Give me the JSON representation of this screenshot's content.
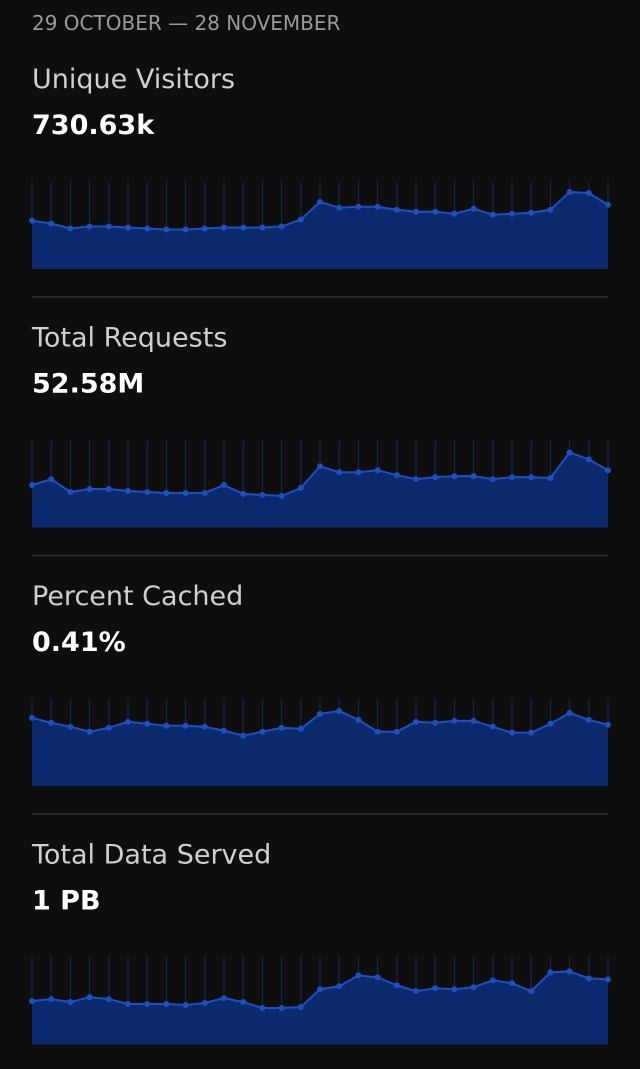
{
  "header": {
    "date_range": "29 OCTOBER — 28 NOVEMBER"
  },
  "chart_data": [
    {
      "type": "area",
      "title": "Unique Visitors",
      "total": "730.63k",
      "color": "#0b2a6e",
      "line_color": "#1f4fbf",
      "ylim": [
        0,
        80
      ],
      "values": [
        49,
        46,
        41,
        43,
        43,
        42,
        41,
        40,
        40,
        41,
        42,
        42,
        42,
        43,
        50,
        68,
        62,
        63,
        63,
        60,
        58,
        58,
        56,
        61,
        55,
        56,
        57,
        60,
        78,
        77,
        65
      ]
    },
    {
      "type": "area",
      "title": "Total Requests",
      "total": "52.58M",
      "color": "#0b2a6e",
      "line_color": "#1f4fbf",
      "ylim": [
        0,
        80
      ],
      "values": [
        43,
        49,
        36,
        39,
        39,
        37,
        36,
        35,
        35,
        35,
        43,
        34,
        33,
        32,
        40,
        62,
        56,
        56,
        58,
        53,
        49,
        51,
        52,
        52,
        49,
        51,
        51,
        50,
        76,
        69,
        58
      ]
    },
    {
      "type": "area",
      "title": "Percent Cached",
      "total": "0.41%",
      "color": "#0b2a6e",
      "line_color": "#1f4fbf",
      "ylim": [
        0,
        80
      ],
      "values": [
        69,
        64,
        60,
        55,
        59,
        65,
        63,
        61,
        61,
        60,
        56,
        51,
        55,
        59,
        58,
        73,
        76,
        67,
        55,
        55,
        65,
        64,
        66,
        66,
        60,
        54,
        54,
        63,
        74,
        67,
        62
      ]
    },
    {
      "type": "area",
      "title": "Total Data Served",
      "total": "1 PB",
      "color": "#0b2a6e",
      "line_color": "#1f4fbf",
      "ylim": [
        0,
        80
      ],
      "values": [
        44,
        46,
        43,
        48,
        46,
        41,
        41,
        41,
        40,
        42,
        47,
        43,
        37,
        37,
        38,
        56,
        59,
        70,
        68,
        60,
        54,
        57,
        56,
        58,
        65,
        62,
        54,
        73,
        74,
        67,
        66
      ]
    }
  ]
}
